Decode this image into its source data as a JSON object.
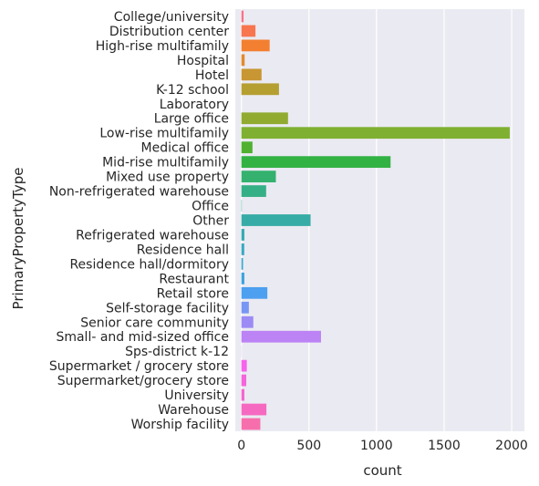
{
  "chart_data": {
    "type": "bar",
    "orientation": "horizontal",
    "xlabel": "count",
    "ylabel": "PrimaryPropertyType",
    "xlim": [
      0,
      2080
    ],
    "xticks": [
      0,
      500,
      1000,
      1500,
      2000
    ],
    "grid": true,
    "background": "#eaeaf2",
    "categories": [
      "College/university",
      "Distribution center",
      "High-rise multifamily",
      "Hospital",
      "Hotel",
      "K-12 school",
      "Laboratory",
      "Large office",
      "Low-rise multifamily",
      "Medical office",
      "Mid-rise multifamily",
      "Mixed use property",
      "Non-refrigerated warehouse",
      "Office",
      "Other",
      "Refrigerated warehouse",
      "Residence hall",
      "Residence hall/dormitory",
      "Restaurant",
      "Retail store",
      "Self-storage facility",
      "Senior care community",
      "Small- and mid-sized office",
      "Sps-district k-12",
      "Supermarket / grocery store",
      "Supermarket/grocery store",
      "University",
      "Warehouse",
      "Worship facility"
    ],
    "values": [
      16,
      104,
      209,
      24,
      149,
      278,
      0,
      345,
      1986,
      82,
      1104,
      255,
      183,
      3,
      512,
      22,
      21,
      12,
      22,
      192,
      55,
      88,
      589,
      1,
      40,
      36,
      22,
      185,
      140
    ],
    "colors": [
      "#f77189",
      "#f7754f",
      "#f37f31",
      "#e18a31",
      "#c89632",
      "#b59f31",
      "#a4a531",
      "#91ab31",
      "#7fb031",
      "#50b131",
      "#33b244",
      "#34b16e",
      "#35af86",
      "#36ae97",
      "#37aca6",
      "#38aab3",
      "#39a9c0",
      "#3ba6ce",
      "#3ea3df",
      "#4d9ff0",
      "#7896f4",
      "#9c8bf4",
      "#bb83f4",
      "#d679f4",
      "#f564eb",
      "#f565db",
      "#f566cd",
      "#f56ac0",
      "#f66eab"
    ]
  }
}
